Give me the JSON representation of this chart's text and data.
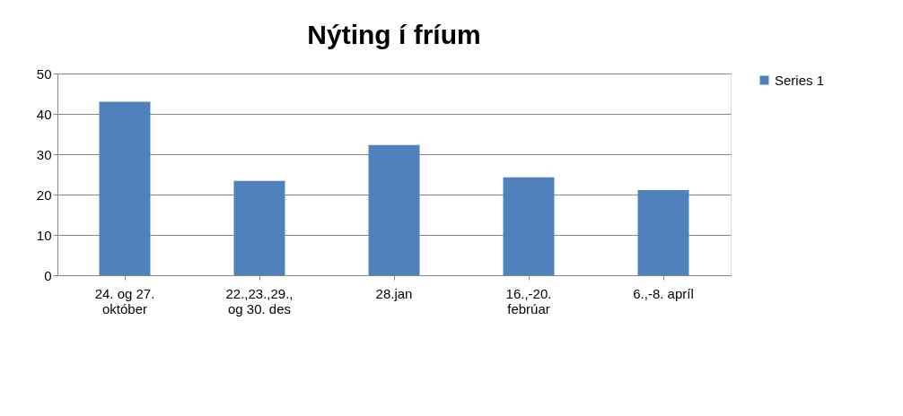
{
  "chart_data": {
    "type": "bar",
    "title": "Nýting í fríum",
    "categories": [
      "24. og 27.\noktóber",
      "22.,23.,29.,\nog 30. des",
      "28.jan",
      "16.,-20.\nfebrúar",
      "6.,-8. apríl"
    ],
    "series": [
      {
        "name": "Series 1",
        "color": "#4f81bd",
        "values": [
          43,
          23.4,
          32.3,
          24.3,
          21.1
        ]
      }
    ],
    "ylim": [
      0,
      50
    ],
    "yticks": [
      0,
      10,
      20,
      30,
      40,
      50
    ],
    "grid": "y",
    "legend": "right"
  }
}
